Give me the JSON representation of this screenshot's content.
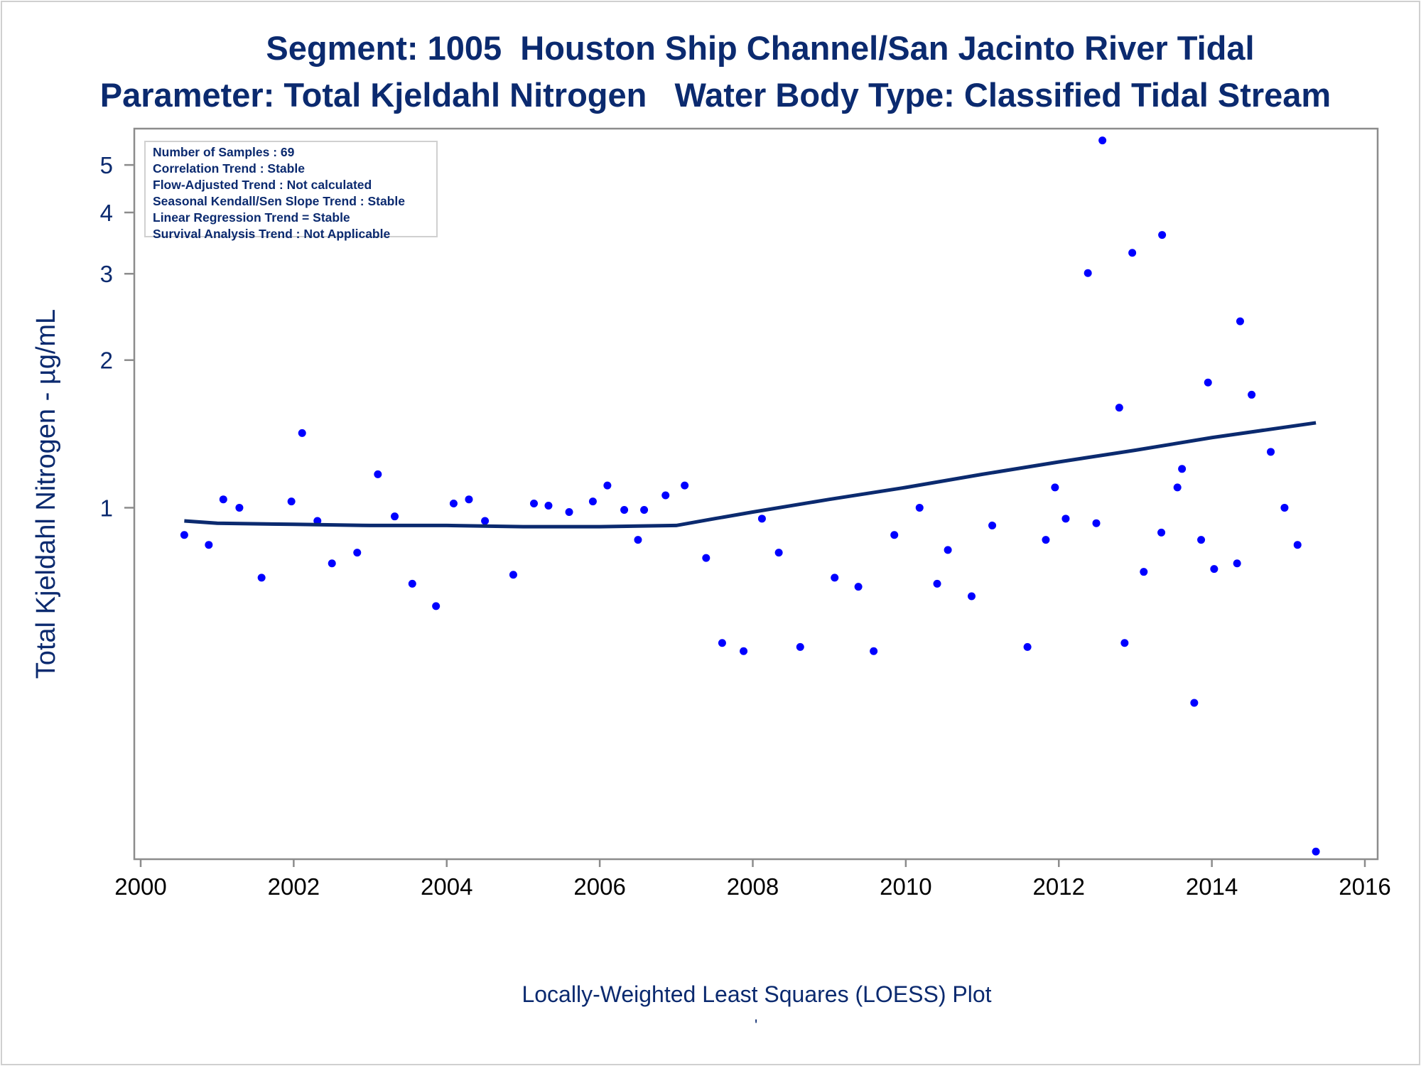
{
  "chart_data": {
    "type": "scatter",
    "title": "Segment: 1005  Houston Ship Channel/San Jacinto River Tidal",
    "subtitle": "Parameter: Total Kjeldahl Nitrogen   Water Body Type: Classified Tidal Stream",
    "xlabel": "",
    "ylabel": "Total Kjeldahl Nitrogen -  µg/mL",
    "caption": "Locally-Weighted Least Squares (LOESS) Plot",
    "footnote_mark": "'",
    "x_scale": "linear",
    "y_scale": "log",
    "xlim": [
      2000,
      2016
    ],
    "ylim": [
      0.192,
      5.93
    ],
    "x_ticks": [
      "2000",
      "2002",
      "2004",
      "2006",
      "2008",
      "2010",
      "2012",
      "2014",
      "2016"
    ],
    "y_ticks": [
      "1",
      "2",
      "3",
      "4",
      "5"
    ],
    "grid": false,
    "legend_position": "top-left",
    "annotation_lines": [
      "Number of Samples : 69",
      "Correlation Trend : Stable",
      "Flow-Adjusted Trend : Not calculated",
      "Seasonal Kendall/Sen Slope Trend : Stable",
      "Linear Regression Trend = Stable",
      "Survival Analysis Trend : Not Applicable"
    ],
    "colors": {
      "points": "#0000ff",
      "loess": "#0b2a6f",
      "text": "#0b2a6f",
      "axis": "#8c8c8c"
    },
    "series": [
      {
        "type": "scatter",
        "x": [
          2000.57,
          2000.89,
          2001.08,
          2001.29,
          2001.58,
          2001.97,
          2002.11,
          2002.31,
          2002.5,
          2002.83,
          2003.1,
          2003.32,
          2003.55,
          2003.86,
          2004.09,
          2004.29,
          2004.5,
          2004.87,
          2005.14,
          2005.33,
          2005.6,
          2005.91,
          2006.1,
          2006.32,
          2006.5,
          2006.58,
          2006.86,
          2007.11,
          2007.39,
          2007.6,
          2007.88,
          2008.12,
          2008.34,
          2008.62,
          2009.07,
          2009.38,
          2009.58,
          2009.85,
          2010.18,
          2010.41,
          2010.55,
          2010.86,
          2011.13,
          2011.59,
          2011.83,
          2011.95,
          2012.09,
          2012.38,
          2012.49,
          2012.57,
          2012.79,
          2012.86,
          2012.96,
          2013.11,
          2013.34,
          2013.35,
          2013.55,
          2013.61,
          2013.77,
          2013.86,
          2013.95,
          2014.03,
          2014.33,
          2014.37,
          2014.52,
          2014.77,
          2014.95,
          2015.12,
          2015.36
        ],
        "y": [
          0.88,
          0.84,
          1.04,
          1.0,
          0.72,
          1.03,
          1.42,
          0.94,
          0.77,
          0.81,
          1.17,
          0.96,
          0.7,
          0.63,
          1.02,
          1.04,
          0.94,
          0.73,
          1.02,
          1.01,
          0.98,
          1.03,
          1.11,
          0.99,
          0.86,
          0.99,
          1.06,
          1.11,
          0.79,
          0.53,
          0.51,
          0.95,
          0.81,
          0.52,
          0.72,
          0.69,
          0.51,
          0.88,
          1.0,
          0.7,
          0.82,
          0.66,
          0.92,
          0.52,
          0.86,
          1.1,
          0.95,
          3.01,
          0.93,
          5.61,
          1.6,
          0.53,
          3.31,
          0.74,
          0.89,
          3.6,
          1.1,
          1.2,
          0.4,
          0.86,
          1.8,
          0.75,
          0.77,
          2.4,
          1.7,
          1.3,
          1.0,
          0.84,
          0.199
        ]
      },
      {
        "type": "line",
        "x": [
          2000.57,
          2001,
          2002,
          2003,
          2004,
          2005,
          2006,
          2007,
          2007.5,
          2008,
          2009,
          2010,
          2011,
          2012,
          2013,
          2014,
          2015.36
        ],
        "y": [
          0.94,
          0.93,
          0.925,
          0.92,
          0.92,
          0.915,
          0.915,
          0.92,
          0.95,
          0.98,
          1.04,
          1.1,
          1.17,
          1.24,
          1.31,
          1.39,
          1.49
        ]
      }
    ]
  }
}
